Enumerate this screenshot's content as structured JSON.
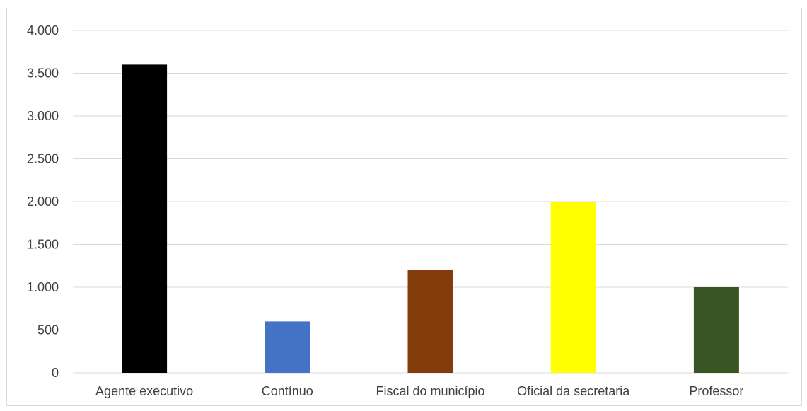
{
  "chart_data": {
    "type": "bar",
    "title": "",
    "xlabel": "",
    "ylabel": "",
    "categories": [
      "Agente executivo",
      "Contínuo",
      "Fiscal do município",
      "Oficial da secretaria",
      "Professor"
    ],
    "values": [
      3600,
      600,
      1200,
      2000,
      1000
    ],
    "colors": [
      "#000000",
      "#4472c4",
      "#843c0c",
      "#ffff00",
      "#375623"
    ],
    "ylim": [
      0,
      4000
    ],
    "yticks": [
      0,
      500,
      1000,
      1500,
      2000,
      2500,
      3000,
      3500,
      4000
    ],
    "ytick_labels": [
      "0",
      "500",
      "1.000",
      "1.500",
      "2.000",
      "2.500",
      "3.000",
      "3.500",
      "4.000"
    ],
    "grid": true,
    "gridline_color": "#d9d9d9",
    "legend": "none"
  }
}
